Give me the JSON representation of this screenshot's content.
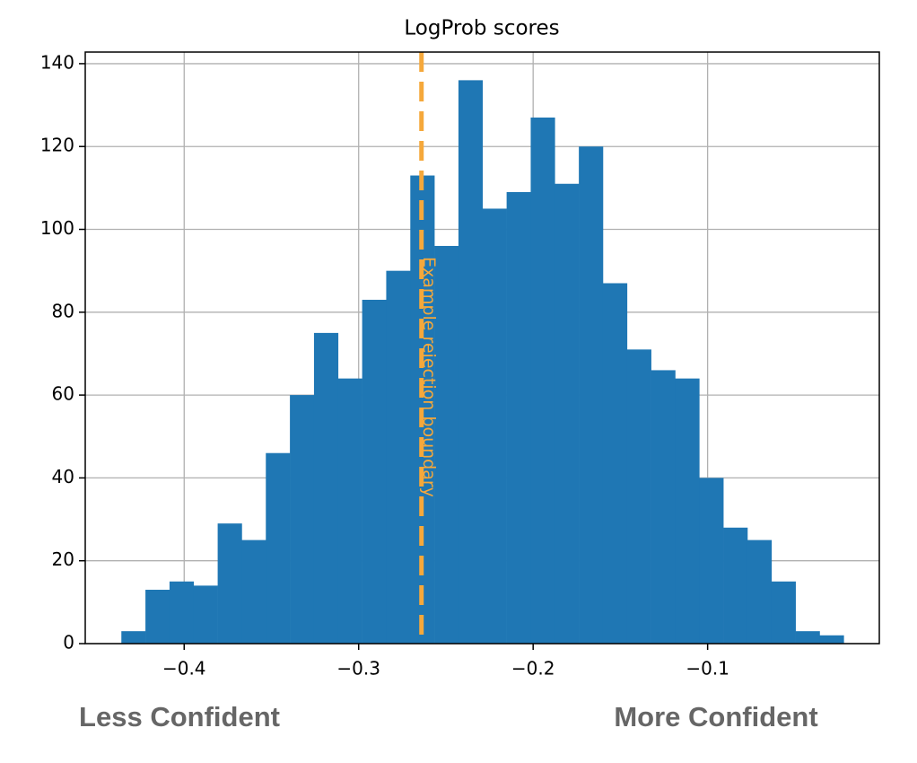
{
  "chart_data": {
    "type": "histogram",
    "title": "LogProb scores",
    "bins": [
      -0.436,
      -0.4222,
      -0.4084,
      -0.3946,
      -0.3808,
      -0.367,
      -0.3532,
      -0.3394,
      -0.3256,
      -0.3118,
      -0.298,
      -0.2842,
      -0.2704,
      -0.2566,
      -0.2428,
      -0.229,
      -0.2152,
      -0.2014,
      -0.1876,
      -0.1738,
      -0.16,
      -0.1462,
      -0.1324,
      -0.1186,
      -0.1048,
      -0.091,
      -0.0772,
      -0.0634,
      -0.0496,
      -0.0358,
      -0.022
    ],
    "values": [
      3,
      13,
      15,
      14,
      29,
      25,
      46,
      60,
      75,
      64,
      83,
      90,
      113,
      96,
      136,
      105,
      109,
      127,
      111,
      120,
      87,
      71,
      66,
      64,
      40,
      28,
      25,
      15,
      3,
      2
    ],
    "color": "#1f77b4",
    "xlim": [
      -0.4567,
      -0.0016
    ],
    "ylim": [
      0,
      142.8
    ],
    "xticks": [
      {
        "value": -0.4,
        "label": "−0.4"
      },
      {
        "value": -0.3,
        "label": "−0.3"
      },
      {
        "value": -0.2,
        "label": "−0.2"
      },
      {
        "value": -0.1,
        "label": "−0.1"
      }
    ],
    "yticks": [
      0,
      20,
      40,
      60,
      80,
      100,
      120,
      140
    ],
    "grid": true,
    "threshold": {
      "value": -0.264,
      "label": "Example rejection boundary",
      "color": "#f5a83b"
    },
    "x_axis_annotations": [
      "Less Confident",
      "More Confident"
    ]
  }
}
